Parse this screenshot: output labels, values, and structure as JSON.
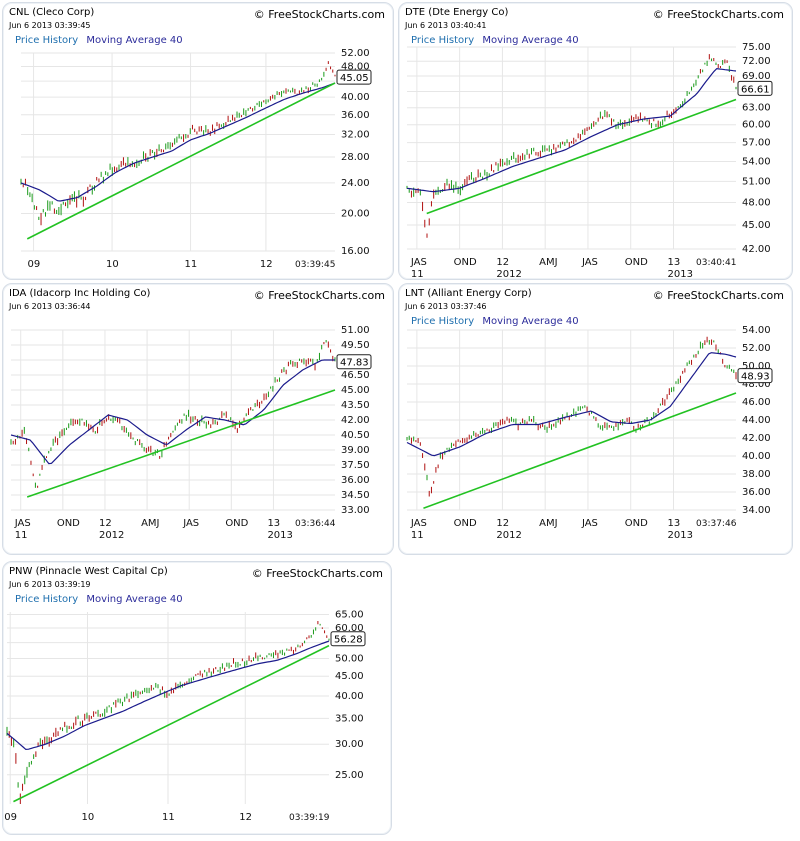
{
  "brand": "© FreeStockCharts.com",
  "legend": {
    "price": "Price History",
    "ma": "Moving Average 40"
  },
  "colors": {
    "ma_line": "#1b1b8c",
    "trend_line": "#22c222",
    "bar_up": "#1a9a1a",
    "bar_down": "#b01010",
    "grid": "#e6e6e6"
  },
  "chart_data": [
    {
      "type": "line",
      "symbol": "CNL",
      "company": "CNL (Cleco Corp)",
      "timestamp": "Jun 6 2013 03:39:45",
      "last_value": "45.05",
      "y_ticks": [
        "52.00",
        "48.00",
        "44.00",
        "40.00",
        "36.00",
        "32.00",
        "28.00",
        "24.00",
        "20.00",
        "16.00"
      ],
      "ylim": [
        16,
        52
      ],
      "scale": "log",
      "x_ticks": [
        "09",
        "10",
        "11",
        "12"
      ],
      "x_tick_positions": [
        0.04,
        0.29,
        0.54,
        0.78
      ],
      "time_label": "03:39:45",
      "series": [
        {
          "name": "Price History",
          "x": [
            0,
            0.03,
            0.06,
            0.09,
            0.12,
            0.16,
            0.2,
            0.25,
            0.3,
            0.35,
            0.4,
            0.45,
            0.5,
            0.55,
            0.6,
            0.65,
            0.7,
            0.75,
            0.8,
            0.85,
            0.88,
            0.92,
            0.95,
            0.98,
            1.0
          ],
          "values": [
            24.5,
            22.5,
            19,
            21,
            20.5,
            21.5,
            22,
            24.5,
            26.5,
            27,
            28,
            29.5,
            31,
            33,
            32.5,
            34.5,
            36,
            38,
            40,
            42,
            40.5,
            42.5,
            43.5,
            49,
            45
          ]
        },
        {
          "name": "Moving Average 40",
          "x": [
            0,
            0.06,
            0.12,
            0.18,
            0.24,
            0.3,
            0.36,
            0.42,
            0.48,
            0.54,
            0.6,
            0.66,
            0.72,
            0.78,
            0.84,
            0.9,
            0.96,
            1.0
          ],
          "values": [
            24,
            23,
            21.5,
            22,
            23.5,
            25.5,
            27,
            28,
            29,
            31,
            32.2,
            33.8,
            35.5,
            37.5,
            39.5,
            41,
            42.3,
            43.5
          ]
        }
      ],
      "trend": {
        "x": [
          0.02,
          1.0
        ],
        "values": [
          17.2,
          43.5
        ]
      }
    },
    {
      "type": "line",
      "symbol": "DTE",
      "company": "DTE (Dte Energy Co)",
      "timestamp": "Jun 6 2013 03:40:41",
      "last_value": "66.61",
      "y_ticks": [
        "75.00",
        "72.00",
        "69.00",
        "66.00",
        "63.00",
        "60.00",
        "57.00",
        "54.00",
        "51.00",
        "48.00",
        "45.00",
        "42.00"
      ],
      "ylim": [
        42,
        75
      ],
      "scale": "log",
      "x_ticks": [
        "JAS",
        "OND",
        "12",
        "AMJ",
        "JAS",
        "OND",
        "13"
      ],
      "x_tick_positions": [
        0.03,
        0.16,
        0.29,
        0.42,
        0.55,
        0.68,
        0.81
      ],
      "x_ticks_row2": [
        "11",
        "2012",
        "2013"
      ],
      "x_ticks_row2_positions": [
        0.03,
        0.29,
        0.81
      ],
      "time_label": "03:40:41",
      "series": [
        {
          "name": "Price History",
          "x": [
            0,
            0.04,
            0.06,
            0.08,
            0.12,
            0.16,
            0.2,
            0.24,
            0.28,
            0.32,
            0.36,
            0.4,
            0.44,
            0.48,
            0.52,
            0.56,
            0.6,
            0.64,
            0.68,
            0.72,
            0.76,
            0.8,
            0.84,
            0.88,
            0.92,
            0.95,
            0.97,
            1.0
          ],
          "values": [
            50,
            49,
            44,
            49,
            50.5,
            50,
            51.5,
            52,
            53.5,
            54.5,
            55,
            55.5,
            56,
            56.5,
            58,
            60,
            62,
            59.5,
            61,
            61,
            60,
            62,
            64,
            68,
            73,
            71,
            72,
            66.61
          ]
        },
        {
          "name": "Moving Average 40",
          "x": [
            0,
            0.08,
            0.16,
            0.24,
            0.32,
            0.4,
            0.48,
            0.56,
            0.64,
            0.72,
            0.8,
            0.88,
            0.94,
            1.0
          ],
          "values": [
            50,
            49.5,
            50,
            51.5,
            53.2,
            54.5,
            55.8,
            58,
            60,
            61,
            61.5,
            65.5,
            70.5,
            70
          ]
        }
      ],
      "trend": {
        "x": [
          0.06,
          1.0
        ],
        "values": [
          46.5,
          64.5
        ]
      }
    },
    {
      "type": "line",
      "symbol": "IDA",
      "company": "IDA (Idacorp Inc Holding Co)",
      "timestamp": "Jun 6 2013 03:36:44",
      "last_value": "47.83",
      "y_ticks": [
        "51.00",
        "49.50",
        "48.00",
        "46.50",
        "45.00",
        "43.50",
        "42.00",
        "40.50",
        "39.00",
        "37.50",
        "36.00",
        "34.50",
        "33.00"
      ],
      "ylim": [
        33,
        51
      ],
      "scale": "linear",
      "x_ticks": [
        "JAS",
        "OND",
        "12",
        "AMJ",
        "JAS",
        "OND",
        "13"
      ],
      "x_tick_positions": [
        0.03,
        0.16,
        0.29,
        0.42,
        0.55,
        0.68,
        0.81
      ],
      "x_ticks_row2": [
        "11",
        "2012",
        "2013"
      ],
      "x_ticks_row2_positions": [
        0.03,
        0.29,
        0.81
      ],
      "time_label": "03:36:44",
      "series": [
        {
          "name": "Price History",
          "x": [
            0,
            0.04,
            0.08,
            0.1,
            0.14,
            0.18,
            0.22,
            0.26,
            0.3,
            0.34,
            0.38,
            0.42,
            0.46,
            0.5,
            0.54,
            0.58,
            0.62,
            0.66,
            0.7,
            0.74,
            0.78,
            0.82,
            0.86,
            0.9,
            0.94,
            0.97,
            1.0
          ],
          "values": [
            39.5,
            41,
            35,
            38,
            40,
            41.5,
            42,
            41,
            42.5,
            41.5,
            40,
            39,
            38.5,
            41,
            42.5,
            42,
            41.5,
            42.5,
            41,
            43,
            44,
            46,
            47.5,
            48,
            47.5,
            50,
            47.83
          ]
        },
        {
          "name": "Moving Average 40",
          "x": [
            0,
            0.06,
            0.12,
            0.18,
            0.24,
            0.3,
            0.36,
            0.42,
            0.48,
            0.54,
            0.6,
            0.66,
            0.72,
            0.78,
            0.84,
            0.9,
            0.96,
            1.0
          ],
          "values": [
            40.5,
            40,
            37.5,
            39.5,
            41,
            42.5,
            42,
            40.5,
            39.5,
            41,
            42.3,
            42,
            41.5,
            43,
            45.5,
            47,
            48,
            48
          ]
        }
      ],
      "trend": {
        "x": [
          0.05,
          1.0
        ],
        "values": [
          34.3,
          45
        ]
      }
    },
    {
      "type": "line",
      "symbol": "LNT",
      "company": "LNT (Alliant Energy Corp)",
      "timestamp": "Jun 6 2013 03:37:46",
      "last_value": "48.93",
      "y_ticks": [
        "54.00",
        "52.00",
        "50.00",
        "48.00",
        "46.00",
        "44.00",
        "42.00",
        "40.00",
        "38.00",
        "36.00",
        "34.00"
      ],
      "ylim": [
        34,
        54
      ],
      "scale": "linear",
      "x_ticks": [
        "JAS",
        "OND",
        "12",
        "AMJ",
        "JAS",
        "OND",
        "13"
      ],
      "x_tick_positions": [
        0.03,
        0.16,
        0.29,
        0.42,
        0.55,
        0.68,
        0.81
      ],
      "x_ticks_row2": [
        "11",
        "2012",
        "2013"
      ],
      "x_ticks_row2_positions": [
        0.03,
        0.29,
        0.81
      ],
      "time_label": "03:37:46",
      "series": [
        {
          "name": "Price History",
          "x": [
            0,
            0.04,
            0.07,
            0.1,
            0.14,
            0.18,
            0.22,
            0.26,
            0.3,
            0.34,
            0.38,
            0.42,
            0.46,
            0.5,
            0.54,
            0.58,
            0.62,
            0.66,
            0.7,
            0.74,
            0.78,
            0.82,
            0.86,
            0.9,
            0.93,
            0.96,
            1.0
          ],
          "values": [
            42,
            41.5,
            35.5,
            40,
            41,
            42,
            42.5,
            43,
            44,
            43.5,
            44,
            43,
            44,
            44.5,
            45.5,
            43.5,
            43,
            44,
            43,
            44,
            46,
            48,
            50.5,
            52.5,
            53,
            50.5,
            48.93
          ]
        },
        {
          "name": "Moving Average 40",
          "x": [
            0,
            0.08,
            0.16,
            0.24,
            0.32,
            0.4,
            0.48,
            0.56,
            0.62,
            0.68,
            0.74,
            0.8,
            0.86,
            0.92,
            0.97,
            1.0
          ],
          "values": [
            41.5,
            40,
            41,
            42.5,
            43.5,
            43.5,
            44.3,
            45,
            43.8,
            43.6,
            44,
            45.5,
            48.5,
            51.5,
            51.3,
            51
          ]
        }
      ],
      "trend": {
        "x": [
          0.05,
          1.0
        ],
        "values": [
          34.2,
          47
        ]
      }
    },
    {
      "type": "line",
      "symbol": "PNW",
      "company": "PNW (Pinnacle West Capital Cp)",
      "timestamp": "Jun 6 2013 03:39:19",
      "last_value": "56.28",
      "y_ticks": [
        "65.00",
        "60.00",
        "55.00",
        "50.00",
        "45.00",
        "40.00",
        "35.00",
        "30.00",
        "25.00"
      ],
      "ylim": [
        21,
        66
      ],
      "scale": "log",
      "x_ticks": [
        "09",
        "10",
        "11",
        "12"
      ],
      "x_tick_positions": [
        0.01,
        0.25,
        0.5,
        0.74
      ],
      "time_label": "03:39:19",
      "series": [
        {
          "name": "Price History",
          "x": [
            0,
            0.02,
            0.04,
            0.07,
            0.1,
            0.14,
            0.18,
            0.22,
            0.26,
            0.3,
            0.34,
            0.38,
            0.42,
            0.46,
            0.5,
            0.54,
            0.58,
            0.62,
            0.66,
            0.7,
            0.74,
            0.78,
            0.82,
            0.86,
            0.9,
            0.94,
            0.97,
            1.0
          ],
          "values": [
            32,
            30,
            22,
            27,
            30,
            31.5,
            33,
            34.5,
            35,
            36.5,
            38,
            39.5,
            41,
            42,
            40.5,
            43,
            44.5,
            46,
            47,
            48.5,
            49,
            50.5,
            51,
            52,
            53,
            57,
            62,
            56.28
          ]
        },
        {
          "name": "Moving Average 40",
          "x": [
            0,
            0.06,
            0.12,
            0.18,
            0.24,
            0.3,
            0.36,
            0.42,
            0.48,
            0.54,
            0.6,
            0.66,
            0.72,
            0.78,
            0.84,
            0.9,
            0.96,
            1.0
          ],
          "values": [
            32,
            29,
            30,
            31.5,
            33.5,
            35,
            36.5,
            38.5,
            40.5,
            42.5,
            44,
            45.5,
            47,
            48.5,
            49.5,
            51.5,
            54,
            55.5
          ]
        }
      ],
      "trend": {
        "x": [
          0.02,
          1.0
        ],
        "values": [
          21.3,
          54
        ]
      }
    }
  ]
}
